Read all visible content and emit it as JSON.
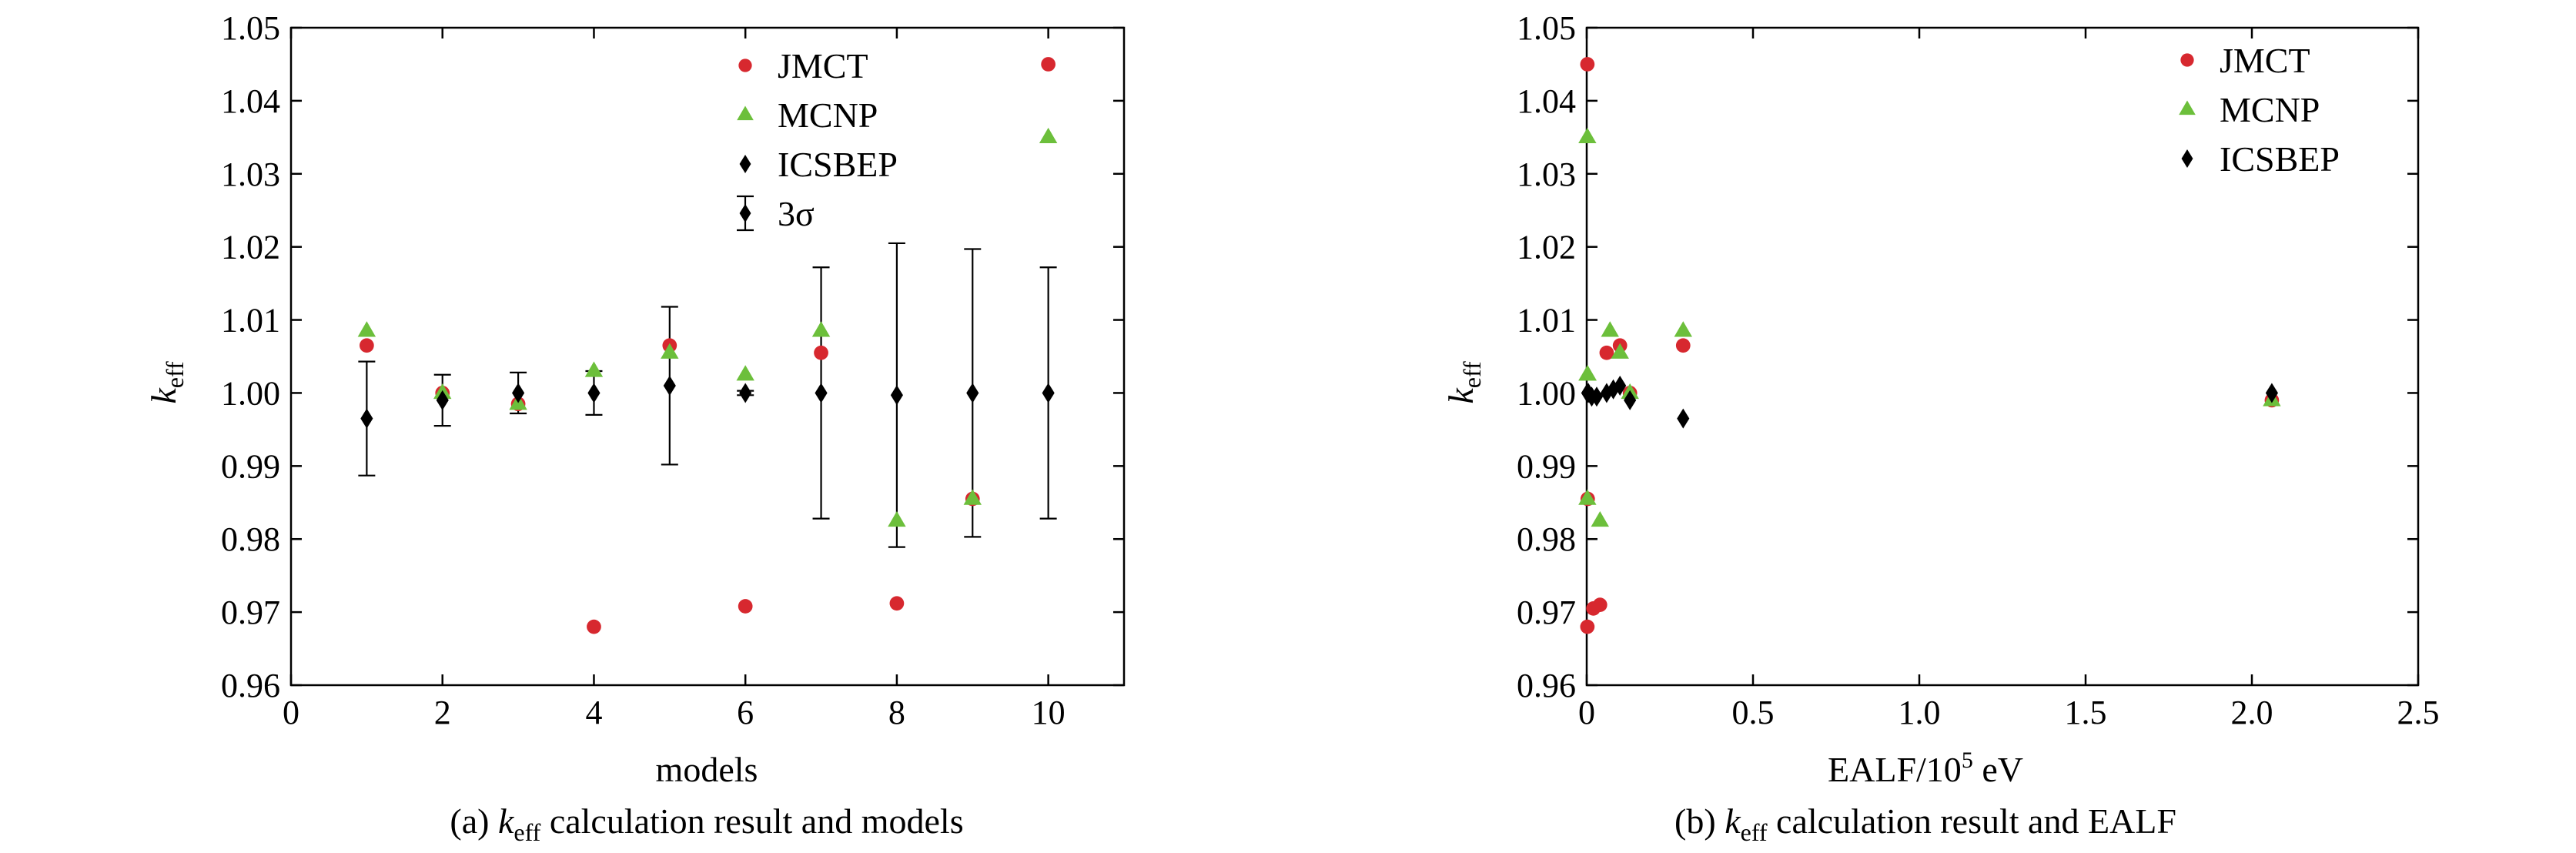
{
  "chart_data": [
    {
      "type": "scatter",
      "caption": {
        "prefix": "(a) ",
        "k": "k",
        "sub": "eff",
        "rest": " calculation result and models"
      },
      "xlabel": "models",
      "ylabel": {
        "k": "k",
        "sub": "eff"
      },
      "xlim": [
        0,
        11
      ],
      "ylim": [
        0.96,
        1.05
      ],
      "xticks": [
        "0",
        "2",
        "4",
        "6",
        "8",
        "10"
      ],
      "yticks": [
        "0.96",
        "0.97",
        "0.98",
        "0.99",
        "1.00",
        "1.01",
        "1.02",
        "1.03",
        "1.04",
        "1.05"
      ],
      "grid": false,
      "legend_position": "top-right",
      "legend": [
        "JMCT",
        "MCNP",
        "ICSBEP",
        "3σ"
      ],
      "series": [
        {
          "name": "JMCT",
          "marker": "circle",
          "color": "#d7282f",
          "x": [
            1,
            2,
            3,
            4,
            5,
            6,
            7,
            8,
            9,
            10
          ],
          "y": [
            1.0065,
            1.0,
            0.9985,
            0.968,
            1.0065,
            0.9708,
            1.0055,
            0.9712,
            0.9855,
            1.045
          ]
        },
        {
          "name": "MCNP",
          "marker": "triangle",
          "color": "#6cbf3b",
          "x": [
            1,
            2,
            3,
            4,
            5,
            6,
            7,
            8,
            9,
            10
          ],
          "y": [
            1.0085,
            1.0,
            0.9985,
            1.003,
            1.0055,
            1.0025,
            1.0085,
            0.9825,
            0.9855,
            1.035
          ]
        },
        {
          "name": "ICSBEP",
          "marker": "diamond",
          "color": "#000000",
          "x": [
            1,
            2,
            3,
            4,
            5,
            6,
            7,
            8,
            9,
            10
          ],
          "y": [
            0.9965,
            0.999,
            1.0,
            1.0,
            1.001,
            1.0,
            1.0,
            0.9997,
            1.0,
            1.0
          ],
          "error_3sigma": [
            0.0078,
            0.0035,
            0.0028,
            0.003,
            0.0108,
            0.0003,
            0.0172,
            0.0208,
            0.0197,
            0.0172
          ]
        }
      ]
    },
    {
      "type": "scatter",
      "caption": {
        "prefix": "(b) ",
        "k": "k",
        "sub": "eff",
        "rest": " calculation result and EALF"
      },
      "xlabel": {
        "main": "EALF/10",
        "sup": "5",
        "unit": " eV"
      },
      "ylabel": {
        "k": "k",
        "sub": "eff"
      },
      "xlim": [
        0,
        2.5
      ],
      "ylim": [
        0.96,
        1.05
      ],
      "xticks": [
        "0",
        "0.5",
        "1.0",
        "1.5",
        "2.0",
        "2.5"
      ],
      "yticks": [
        "0.96",
        "0.97",
        "0.98",
        "0.99",
        "1.00",
        "1.01",
        "1.02",
        "1.03",
        "1.04",
        "1.05"
      ],
      "grid": false,
      "legend_position": "top-right",
      "legend": [
        "JMCT",
        "MCNP",
        "ICSBEP"
      ],
      "series": [
        {
          "name": "JMCT",
          "marker": "circle",
          "color": "#d7282f",
          "x": [
            0.29,
            2.06,
            0.13,
            0.002,
            0.1,
            0.04,
            0.06,
            0.02,
            0.003,
            0.002
          ],
          "y": [
            1.0065,
            0.999,
            1.0,
            0.968,
            1.0065,
            0.971,
            1.0055,
            0.9705,
            0.9855,
            1.045
          ]
        },
        {
          "name": "MCNP",
          "marker": "triangle",
          "color": "#6cbf3b",
          "x": [
            0.29,
            2.06,
            0.13,
            0.003,
            0.1,
            0.002,
            0.07,
            0.04,
            0.002,
            0.002
          ],
          "y": [
            1.0085,
            0.999,
            1.0,
            1.0025,
            1.0055,
            1.0025,
            1.0085,
            0.9825,
            0.9855,
            1.035
          ]
        },
        {
          "name": "ICSBEP",
          "marker": "diamond",
          "color": "#000000",
          "x": [
            0.29,
            2.06,
            0.13,
            0.002,
            0.1,
            0.03,
            0.06,
            0.015,
            0.005,
            0.08
          ],
          "y": [
            0.9965,
            1.0,
            0.999,
            1.0,
            1.001,
            0.9995,
            1.0,
            0.9995,
            1.0,
            1.0005
          ]
        }
      ]
    }
  ]
}
